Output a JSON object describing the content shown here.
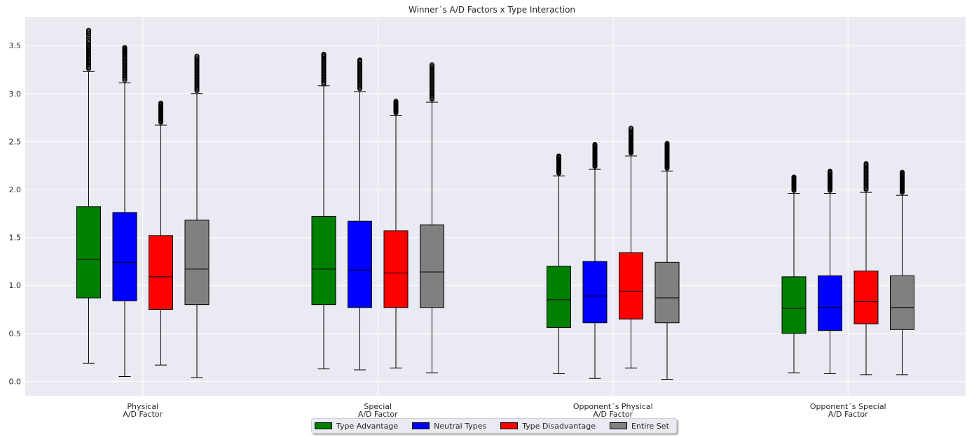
{
  "chart_data": {
    "type": "box",
    "title": "Winner´s A/D Factors x Type Interaction",
    "xlabel": "",
    "ylabel": "",
    "ylim": [
      -0.15,
      3.8
    ],
    "yticks": [
      "0.0",
      "0.5",
      "1.0",
      "1.5",
      "2.0",
      "2.5",
      "3.0",
      "3.5"
    ],
    "grid": true,
    "legend_position": "bottom-center",
    "categories": [
      [
        "Physical",
        "A/D Factor"
      ],
      [
        "Special",
        "A/D Factor"
      ],
      [
        "Opponent´s Physical",
        "A/D Factor"
      ],
      [
        "Opponent´s Special",
        "A/D Factor"
      ]
    ],
    "series": [
      {
        "name": "Type Advantage",
        "color": "#008000",
        "boxes": [
          {
            "whislo": 0.19,
            "q1": 0.87,
            "med": 1.27,
            "q3": 1.82,
            "whishi": 3.23,
            "fliers": [
              3.26,
              3.3,
              3.34,
              3.38,
              3.42,
              3.46,
              3.5,
              3.55,
              3.62,
              3.66
            ]
          },
          {
            "whislo": 0.13,
            "q1": 0.8,
            "med": 1.17,
            "q3": 1.72,
            "whishi": 3.08,
            "fliers": [
              3.1,
              3.14,
              3.18,
              3.22,
              3.26,
              3.3,
              3.34,
              3.38,
              3.41
            ]
          },
          {
            "whislo": 0.08,
            "q1": 0.56,
            "med": 0.85,
            "q3": 1.2,
            "whishi": 2.14,
            "fliers": [
              2.17,
              2.2,
              2.23,
              2.26,
              2.29,
              2.32,
              2.35
            ]
          },
          {
            "whislo": 0.09,
            "q1": 0.5,
            "med": 0.76,
            "q3": 1.09,
            "whishi": 1.96,
            "fliers": [
              1.99,
              2.02,
              2.05,
              2.08,
              2.11,
              2.13
            ]
          }
        ]
      },
      {
        "name": "Neutral Types",
        "color": "#0000ff",
        "boxes": [
          {
            "whislo": 0.05,
            "q1": 0.84,
            "med": 1.24,
            "q3": 1.76,
            "whishi": 3.11,
            "fliers": [
              3.14,
              3.18,
              3.22,
              3.26,
              3.3,
              3.34,
              3.38,
              3.42,
              3.45,
              3.48
            ]
          },
          {
            "whislo": 0.12,
            "q1": 0.77,
            "med": 1.16,
            "q3": 1.67,
            "whishi": 3.02,
            "fliers": [
              3.05,
              3.09,
              3.13,
              3.17,
              3.21,
              3.25,
              3.29,
              3.33,
              3.35
            ]
          },
          {
            "whislo": 0.03,
            "q1": 0.61,
            "med": 0.89,
            "q3": 1.25,
            "whishi": 2.21,
            "fliers": [
              2.24,
              2.27,
              2.3,
              2.33,
              2.36,
              2.39,
              2.42,
              2.45,
              2.47
            ]
          },
          {
            "whislo": 0.08,
            "q1": 0.53,
            "med": 0.77,
            "q3": 1.1,
            "whishi": 1.96,
            "fliers": [
              1.99,
              2.02,
              2.05,
              2.08,
              2.11,
              2.14,
              2.17,
              2.19
            ]
          }
        ]
      },
      {
        "name": "Type Disadvantage",
        "color": "#ff0000",
        "boxes": [
          {
            "whislo": 0.17,
            "q1": 0.75,
            "med": 1.09,
            "q3": 1.52,
            "whishi": 2.67,
            "fliers": [
              2.7,
              2.73,
              2.76,
              2.79,
              2.82,
              2.85,
              2.88,
              2.9
            ]
          },
          {
            "whislo": 0.14,
            "q1": 0.77,
            "med": 1.13,
            "q3": 1.57,
            "whishi": 2.77,
            "fliers": [
              2.8,
              2.83,
              2.86,
              2.89,
              2.92
            ]
          },
          {
            "whislo": 0.14,
            "q1": 0.65,
            "med": 0.94,
            "q3": 1.34,
            "whishi": 2.35,
            "fliers": [
              2.38,
              2.41,
              2.44,
              2.47,
              2.5,
              2.53,
              2.57,
              2.6,
              2.64
            ]
          },
          {
            "whislo": 0.07,
            "q1": 0.6,
            "med": 0.83,
            "q3": 1.15,
            "whishi": 1.97,
            "fliers": [
              2.0,
              2.04,
              2.08,
              2.12,
              2.16,
              2.2,
              2.24,
              2.27
            ]
          }
        ]
      },
      {
        "name": "Entire Set",
        "color": "#808080",
        "boxes": [
          {
            "whislo": 0.04,
            "q1": 0.8,
            "med": 1.17,
            "q3": 1.68,
            "whishi": 3.0,
            "fliers": [
              3.03,
              3.07,
              3.11,
              3.15,
              3.19,
              3.23,
              3.27,
              3.31,
              3.35,
              3.39
            ]
          },
          {
            "whislo": 0.09,
            "q1": 0.77,
            "med": 1.14,
            "q3": 1.63,
            "whishi": 2.91,
            "fliers": [
              2.94,
              2.98,
              3.02,
              3.06,
              3.1,
              3.14,
              3.18,
              3.22,
              3.26,
              3.3
            ]
          },
          {
            "whislo": 0.02,
            "q1": 0.61,
            "med": 0.87,
            "q3": 1.24,
            "whishi": 2.19,
            "fliers": [
              2.22,
              2.25,
              2.28,
              2.31,
              2.34,
              2.37,
              2.4,
              2.43,
              2.46,
              2.48
            ]
          },
          {
            "whislo": 0.07,
            "q1": 0.54,
            "med": 0.77,
            "q3": 1.1,
            "whishi": 1.94,
            "fliers": [
              1.97,
              2.0,
              2.03,
              2.06,
              2.09,
              2.12,
              2.15,
              2.18
            ]
          }
        ]
      }
    ]
  }
}
